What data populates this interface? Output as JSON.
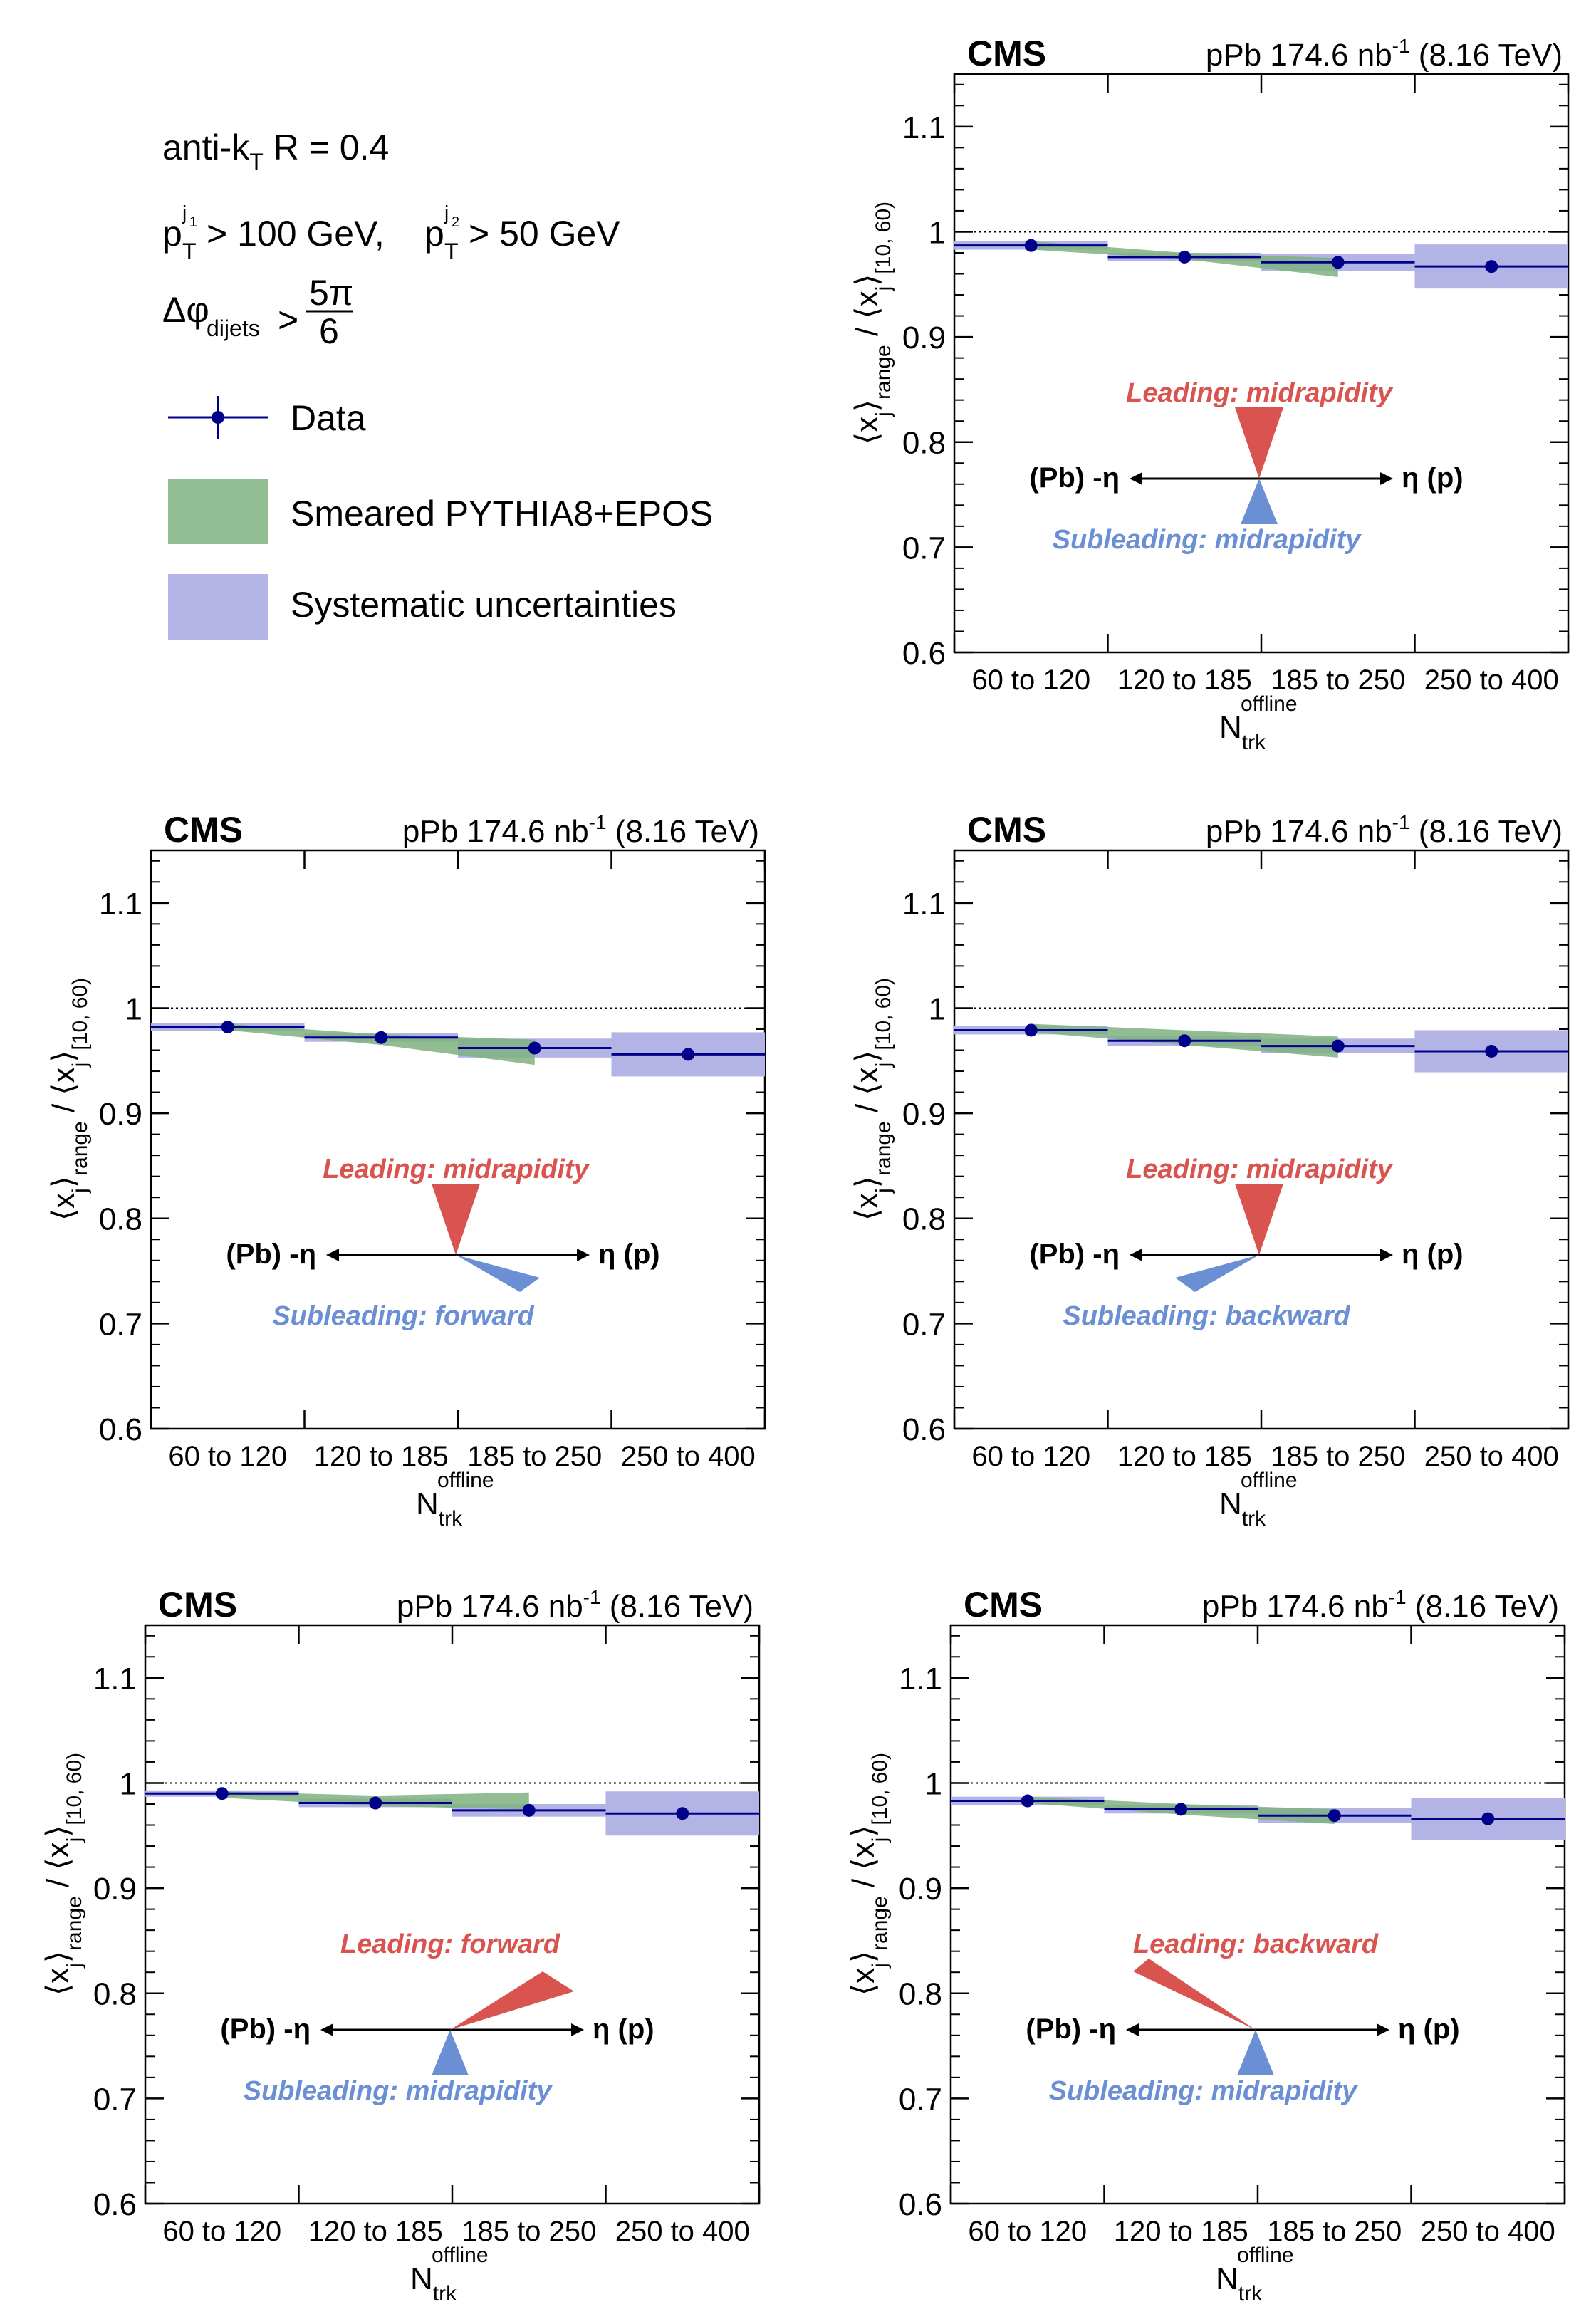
{
  "legend": {
    "jet_algo": "anti-k",
    "jet_algo_sub": "T",
    "jet_radius": " R = 0.4",
    "pt_p": "p",
    "pt_t": "T",
    "pt_j1": "j",
    "pt_j1_num": "1",
    "pt_j2": "j",
    "pt_j2_num": "2",
    "pt_cut1": " > 100 GeV,",
    "pt_cut2": " > 50 GeV",
    "dphi_symbol": "Δφ",
    "dphi_sub": "dijets",
    "dphi_gt": ">",
    "dphi_num": "5π",
    "dphi_den": "6",
    "items": [
      {
        "label": "Data",
        "kind": "marker",
        "color": "#00008b"
      },
      {
        "label": "Smeared PYTHIA8+EPOS",
        "kind": "band",
        "color": "#7fb27f"
      },
      {
        "label": "Systematic uncertainties",
        "kind": "band",
        "color": "#b3b3e6"
      }
    ]
  },
  "common": {
    "cms_label": "CMS",
    "lumi_prefix": "pPb 174.6 nb",
    "lumi_exp": "-1",
    "lumi_suffix": " (8.16 TeV)",
    "ylabel_x": "x",
    "ylabel_j": "j",
    "ylabel_range": "range",
    "ylabel_slash": "/",
    "ylabel_sub2": "[10, 60)",
    "xlabel_main": "N",
    "xlabel_sub": "trk",
    "xlabel_sup": "offline",
    "pb_label": "(Pb) -η",
    "p_label": "η (p)",
    "colors": {
      "data": "#00008b",
      "pythia": "#7fb27f",
      "syst": "#b3b3e6",
      "leading": "#d9534f",
      "subleading": "#6a8fd4",
      "reference_line": "#000000"
    }
  },
  "chart_data": [
    {
      "type": "bar",
      "categories": [
        "60 to 120",
        "120 to 185",
        "185 to 250",
        "250 to 400"
      ],
      "ylim": [
        0.6,
        1.15
      ],
      "yticks": [
        0.6,
        0.7,
        0.8,
        0.9,
        1.0,
        1.1
      ],
      "ytick_labels": [
        "0.6",
        "0.7",
        "0.8",
        "0.9",
        "1",
        "1.1"
      ],
      "reference_line": 1.0,
      "series": [
        {
          "name": "Data",
          "values": [
            0.987,
            0.976,
            0.971,
            0.967
          ],
          "syst": [
            0.004,
            0.004,
            0.008,
            0.021
          ]
        },
        {
          "name": "Smeared PYTHIA8+EPOS",
          "values": [
            0.987,
            0.977,
            0.966,
            null
          ],
          "width": [
            0.004,
            0.003,
            0.009,
            null
          ]
        }
      ],
      "leading": "Leading: midrapidity",
      "subleading": "Subleading: midrapidity",
      "leading_dir": "mid",
      "subleading_dir": "mid"
    },
    {
      "type": "bar",
      "categories": [
        "60 to 120",
        "120 to 185",
        "185 to 250",
        "250 to 400"
      ],
      "ylim": [
        0.6,
        1.15
      ],
      "yticks": [
        0.6,
        0.7,
        0.8,
        0.9,
        1.0,
        1.1
      ],
      "ytick_labels": [
        "0.6",
        "0.7",
        "0.8",
        "0.9",
        "1",
        "1.1"
      ],
      "reference_line": 1.0,
      "series": [
        {
          "name": "Data",
          "values": [
            0.982,
            0.972,
            0.962,
            0.956
          ],
          "syst": [
            0.004,
            0.004,
            0.009,
            0.021
          ]
        },
        {
          "name": "Smeared PYTHIA8+EPOS",
          "values": [
            0.982,
            0.97,
            0.958,
            null
          ],
          "width": [
            0.003,
            0.005,
            0.012,
            null
          ]
        }
      ],
      "leading": "Leading: midrapidity",
      "subleading": "Subleading: forward",
      "leading_dir": "mid",
      "subleading_dir": "forward"
    },
    {
      "type": "bar",
      "categories": [
        "60 to 120",
        "120 to 185",
        "185 to 250",
        "250 to 400"
      ],
      "ylim": [
        0.6,
        1.15
      ],
      "yticks": [
        0.6,
        0.7,
        0.8,
        0.9,
        1.0,
        1.1
      ],
      "ytick_labels": [
        "0.6",
        "0.7",
        "0.8",
        "0.9",
        "1",
        "1.1"
      ],
      "reference_line": 1.0,
      "series": [
        {
          "name": "Data",
          "values": [
            0.979,
            0.969,
            0.964,
            0.959
          ],
          "syst": [
            0.004,
            0.005,
            0.007,
            0.02
          ]
        },
        {
          "name": "Smeared PYTHIA8+EPOS",
          "values": [
            0.981,
            0.972,
            0.963,
            null
          ],
          "width": [
            0.004,
            0.007,
            0.01,
            null
          ]
        }
      ],
      "leading": "Leading: midrapidity",
      "subleading": "Subleading: backward",
      "leading_dir": "mid",
      "subleading_dir": "backward"
    },
    {
      "type": "bar",
      "categories": [
        "60 to 120",
        "120 to 185",
        "185 to 250",
        "250 to 400"
      ],
      "ylim": [
        0.6,
        1.15
      ],
      "yticks": [
        0.6,
        0.7,
        0.8,
        0.9,
        1.0,
        1.1
      ],
      "ytick_labels": [
        "0.6",
        "0.7",
        "0.8",
        "0.9",
        "1",
        "1.1"
      ],
      "reference_line": 1.0,
      "series": [
        {
          "name": "Data",
          "values": [
            0.99,
            0.981,
            0.974,
            0.971
          ],
          "syst": [
            0.003,
            0.004,
            0.006,
            0.021
          ]
        },
        {
          "name": "Smeared PYTHIA8+EPOS",
          "values": [
            0.989,
            0.983,
            0.983,
            null
          ],
          "width": [
            0.003,
            0.005,
            0.008,
            null
          ]
        }
      ],
      "leading": "Leading: forward",
      "subleading": "Subleading: midrapidity",
      "leading_dir": "forward",
      "subleading_dir": "mid"
    },
    {
      "type": "bar",
      "categories": [
        "60 to 120",
        "120 to 185",
        "185 to 250",
        "250 to 400"
      ],
      "ylim": [
        0.6,
        1.15
      ],
      "yticks": [
        0.6,
        0.7,
        0.8,
        0.9,
        1.0,
        1.1
      ],
      "ytick_labels": [
        "0.6",
        "0.7",
        "0.8",
        "0.9",
        "1",
        "1.1"
      ],
      "reference_line": 1.0,
      "series": [
        {
          "name": "Data",
          "values": [
            0.983,
            0.975,
            0.969,
            0.966
          ],
          "syst": [
            0.004,
            0.004,
            0.007,
            0.02
          ]
        },
        {
          "name": "Smeared PYTHIA8+EPOS",
          "values": [
            0.984,
            0.975,
            0.968,
            null
          ],
          "width": [
            0.003,
            0.005,
            0.007,
            null
          ]
        }
      ],
      "leading": "Leading: backward",
      "subleading": "Subleading: midrapidity",
      "leading_dir": "backward",
      "subleading_dir": "mid"
    }
  ]
}
